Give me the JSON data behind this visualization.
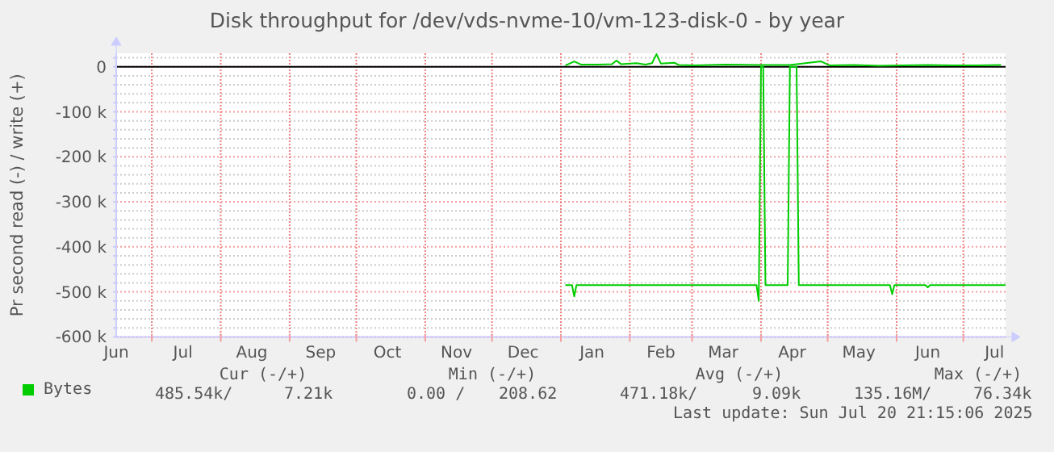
{
  "chart_data": {
    "type": "line",
    "title": "Disk throughput for /dev/vds-nvme-10/vm-123-disk-0 - by year",
    "ylabel": "Pr second read (-) / write (+)",
    "xlim": [
      "2024-06-15",
      "2025-07-20"
    ],
    "ylim": [
      -600000,
      30000
    ],
    "xticks": [
      {
        "value": "2024-06-15",
        "label": "Jun"
      },
      {
        "value": "2024-07-01",
        "label": null
      },
      {
        "value": "2024-07-15",
        "label": "Jul"
      },
      {
        "value": "2024-08-01",
        "label": null
      },
      {
        "value": "2024-08-15",
        "label": "Aug"
      },
      {
        "value": "2024-09-01",
        "label": null
      },
      {
        "value": "2024-09-15",
        "label": "Sep"
      },
      {
        "value": "2024-10-01",
        "label": null
      },
      {
        "value": "2024-10-15",
        "label": "Oct"
      },
      {
        "value": "2024-11-01",
        "label": null
      },
      {
        "value": "2024-11-15",
        "label": "Nov"
      },
      {
        "value": "2024-12-01",
        "label": null
      },
      {
        "value": "2024-12-15",
        "label": "Dec"
      },
      {
        "value": "2025-01-01",
        "label": null
      },
      {
        "value": "2025-01-15",
        "label": "Jan"
      },
      {
        "value": "2025-02-01",
        "label": null
      },
      {
        "value": "2025-02-15",
        "label": "Feb"
      },
      {
        "value": "2025-03-01",
        "label": null
      },
      {
        "value": "2025-03-15",
        "label": "Mar"
      },
      {
        "value": "2025-04-01",
        "label": null
      },
      {
        "value": "2025-04-15",
        "label": "Apr"
      },
      {
        "value": "2025-05-01",
        "label": null
      },
      {
        "value": "2025-05-15",
        "label": "May"
      },
      {
        "value": "2025-06-01",
        "label": null
      },
      {
        "value": "2025-06-15",
        "label": "Jun"
      },
      {
        "value": "2025-07-01",
        "label": null
      },
      {
        "value": "2025-07-15",
        "label": "Jul"
      }
    ],
    "yticks": [
      {
        "value": 20000,
        "label": null
      },
      0,
      {
        "value": -20000,
        "label": null
      },
      {
        "value": -40000,
        "label": null
      },
      {
        "value": -60000,
        "label": null
      },
      {
        "value": -80000,
        "label": null
      },
      {
        "value": -100000,
        "label": "-100 k"
      },
      {
        "value": -120000,
        "label": null
      },
      {
        "value": -140000,
        "label": null
      },
      {
        "value": -160000,
        "label": null
      },
      {
        "value": -180000,
        "label": null
      },
      {
        "value": -200000,
        "label": "-200 k"
      },
      {
        "value": -220000,
        "label": null
      },
      {
        "value": -240000,
        "label": null
      },
      {
        "value": -260000,
        "label": null
      },
      {
        "value": -280000,
        "label": null
      },
      {
        "value": -300000,
        "label": "-300 k"
      },
      {
        "value": -320000,
        "label": null
      },
      {
        "value": -340000,
        "label": null
      },
      {
        "value": -360000,
        "label": null
      },
      {
        "value": -380000,
        "label": null
      },
      {
        "value": -400000,
        "label": "-400 k"
      },
      {
        "value": -420000,
        "label": null
      },
      {
        "value": -440000,
        "label": null
      },
      {
        "value": -460000,
        "label": null
      },
      {
        "value": -480000,
        "label": null
      },
      {
        "value": -500000,
        "label": "-500 k"
      },
      {
        "value": -520000,
        "label": null
      },
      {
        "value": -540000,
        "label": null
      },
      {
        "value": -560000,
        "label": null
      },
      {
        "value": -580000,
        "label": null
      },
      {
        "value": -600000,
        "label": "-600 k"
      }
    ],
    "grid": true,
    "legend": "bottom left",
    "marker": "none",
    "line_style": "solid",
    "ref_lines": [
      {
        "axis": "y",
        "value": 0,
        "color": "#000000"
      }
    ],
    "series": [
      {
        "name": "Bytes",
        "color": "#00cc00",
        "x": [
          "2025-01-03",
          "2025-01-06",
          "2025-01-07",
          "2025-01-08",
          "2025-03-30",
          "2025-03-31",
          "2025-04-01",
          "2025-04-02",
          "2025-04-03",
          "2025-04-13",
          "2025-04-14",
          "2025-04-17",
          "2025-04-18",
          "2025-05-29",
          "2025-05-30",
          "2025-05-31",
          "2025-06-14",
          "2025-06-15",
          "2025-06-16",
          "2025-07-20"
        ],
        "values": [
          -485000,
          -485000,
          -510000,
          -485000,
          -485000,
          -520000,
          0,
          0,
          -485000,
          -485000,
          0,
          0,
          -485000,
          -485000,
          -505000,
          -485000,
          -485000,
          -490000,
          -485000,
          -485000
        ]
      },
      {
        "color": "#00cc00",
        "x": [
          "2025-01-03",
          "2025-01-07",
          "2025-01-10",
          "2025-01-18",
          "2025-01-24",
          "2025-01-26",
          "2025-01-28",
          "2025-02-04",
          "2025-02-08",
          "2025-02-11",
          "2025-02-13",
          "2025-02-15",
          "2025-02-21",
          "2025-02-23",
          "2025-03-02",
          "2025-03-09",
          "2025-03-16",
          "2025-03-31",
          "2025-04-14",
          "2025-04-28",
          "2025-05-02",
          "2025-05-13",
          "2025-05-24",
          "2025-06-04",
          "2025-06-15",
          "2025-06-26",
          "2025-07-07",
          "2025-07-18"
        ],
        "values": [
          3000,
          12000,
          5000,
          5000,
          6000,
          14000,
          6000,
          8000,
          5000,
          8000,
          28000,
          7000,
          9000,
          4000,
          3000,
          4000,
          5000,
          4000,
          4000,
          12000,
          3000,
          4000,
          2000,
          3000,
          4000,
          3000,
          3000,
          4000
        ]
      }
    ],
    "annotations": [
      "Cur (-/+)",
      "Min (-/+)",
      "Avg (-/+)",
      "Max (-/+)",
      "485.54k/",
      "7.21k",
      "0.00 /",
      "208.62",
      "471.18k/",
      "9.09k",
      "135.16M/",
      "76.34k",
      "Last update: Sun Jul 20 21:15:06 2025"
    ]
  }
}
